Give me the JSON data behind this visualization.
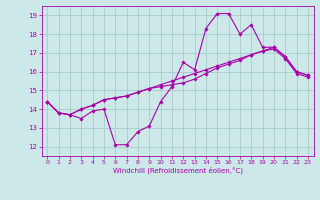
{
  "xlabel": "Windchill (Refroidissement éolien,°C)",
  "background_color": "#cce8e8",
  "grid_color": "#aacccc",
  "line_color": "#aa00aa",
  "xlim": [
    -0.5,
    23.5
  ],
  "ylim": [
    11.5,
    19.5
  ],
  "xticks": [
    0,
    1,
    2,
    3,
    4,
    5,
    6,
    7,
    8,
    9,
    10,
    11,
    12,
    13,
    14,
    15,
    16,
    17,
    18,
    19,
    20,
    21,
    22,
    23
  ],
  "yticks": [
    12,
    13,
    14,
    15,
    16,
    17,
    18,
    19
  ],
  "series": [
    [
      14.4,
      13.8,
      13.7,
      13.5,
      13.9,
      14.0,
      12.1,
      12.1,
      12.8,
      13.1,
      14.4,
      15.2,
      16.5,
      16.1,
      18.3,
      19.1,
      19.1,
      18.0,
      18.5,
      17.3,
      17.3,
      16.8,
      16.0,
      15.8
    ],
    [
      14.4,
      13.8,
      13.7,
      14.0,
      14.2,
      14.5,
      14.6,
      14.7,
      14.9,
      15.1,
      15.3,
      15.5,
      15.7,
      15.9,
      16.1,
      16.3,
      16.5,
      16.7,
      16.9,
      17.1,
      17.3,
      16.8,
      16.0,
      15.8
    ],
    [
      14.4,
      13.8,
      13.7,
      14.0,
      14.2,
      14.5,
      14.6,
      14.7,
      14.9,
      15.1,
      15.2,
      15.3,
      15.4,
      15.6,
      15.9,
      16.2,
      16.4,
      16.6,
      16.9,
      17.1,
      17.2,
      16.7,
      15.9,
      15.7
    ]
  ]
}
